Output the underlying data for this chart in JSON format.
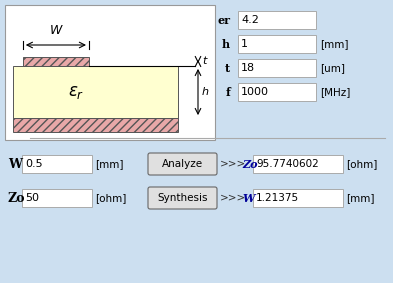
{
  "bg_color": "#ccdff0",
  "diagram_bg": "#ffffff",
  "substrate_color": "#ffffd0",
  "trace_fill": "#e8a8a8",
  "gnd_fill": "#e8a8a8",
  "hatch_pattern": "////",
  "fields_right": [
    {
      "label": "er",
      "value": "4.2",
      "unit": ""
    },
    {
      "label": "h",
      "value": "1",
      "unit": "[mm]"
    },
    {
      "label": "t",
      "value": "18",
      "unit": "[um]"
    },
    {
      "label": "f",
      "value": "1000",
      "unit": "[MHz]"
    }
  ],
  "row1": {
    "label": "W",
    "input_val": "0.5",
    "unit1": "[mm]",
    "button": "Analyze",
    "arrow": ">>>",
    "result_label": "Zo",
    "result_val": "95.7740602",
    "unit2": "[ohm]"
  },
  "row2": {
    "label": "Zo",
    "input_val": "50",
    "unit1": "[ohm]",
    "button": "Synthesis",
    "arrow": ">>>",
    "result_label": "W",
    "result_val": "1.21375",
    "unit2": "[mm]"
  }
}
